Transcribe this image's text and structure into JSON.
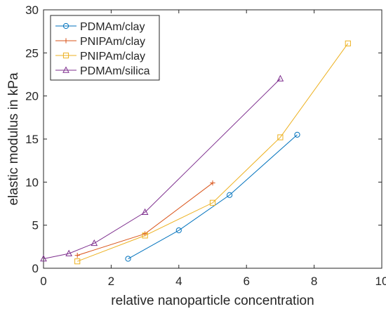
{
  "chart_data": {
    "type": "line",
    "title": "",
    "xlabel": "relative nanoparticle concentration",
    "ylabel": "elastic modulus in kPa",
    "xlim": [
      0,
      10
    ],
    "ylim": [
      0,
      30
    ],
    "xticks": [
      0,
      2,
      4,
      6,
      8,
      10
    ],
    "yticks": [
      0,
      5,
      10,
      15,
      20,
      25,
      30
    ],
    "grid": false,
    "legend": "top-left",
    "series": [
      {
        "name": "PDMAm/clay",
        "color": "#0072BD",
        "marker": "circle",
        "points": [
          [
            2.5,
            1.1
          ],
          [
            4.0,
            4.4
          ],
          [
            5.5,
            8.5
          ],
          [
            7.5,
            15.5
          ]
        ]
      },
      {
        "name": "PNIPAm/clay",
        "color": "#D95319",
        "marker": "plus",
        "points": [
          [
            1.0,
            1.5
          ],
          [
            3.0,
            4.0
          ],
          [
            5.0,
            9.9
          ]
        ]
      },
      {
        "name": "PNIPAm/clay",
        "color": "#EDB120",
        "marker": "square",
        "points": [
          [
            1.0,
            0.8
          ],
          [
            3.0,
            3.8
          ],
          [
            5.0,
            7.6
          ],
          [
            7.0,
            15.2
          ],
          [
            9.0,
            26.1
          ]
        ]
      },
      {
        "name": "PDMAm/silica",
        "color": "#7E2F8E",
        "marker": "triangle",
        "points": [
          [
            0.0,
            1.1
          ],
          [
            0.75,
            1.7
          ],
          [
            1.5,
            2.9
          ],
          [
            3.0,
            6.5
          ],
          [
            7.0,
            22.0
          ]
        ]
      }
    ]
  }
}
